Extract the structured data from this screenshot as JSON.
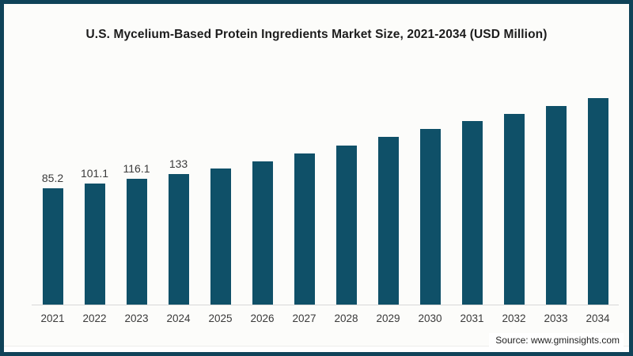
{
  "window": {
    "frame_color": "#0f4258",
    "background": "#fcfcfa"
  },
  "source": "Source: www.gminsights.com",
  "chart_data": {
    "type": "bar",
    "title": "U.S. Mycelium-Based Protein Ingredients Market Size, 2021-2034 (USD Million)",
    "xlabel": "",
    "ylabel": "USD Million",
    "categories": [
      "2021",
      "2022",
      "2023",
      "2024",
      "2025",
      "2026",
      "2027",
      "2028",
      "2029",
      "2030",
      "2031",
      "2032",
      "2033",
      "2034"
    ],
    "values": [
      85.2,
      101.1,
      116.1,
      133,
      151,
      174,
      200,
      226,
      252,
      280,
      304,
      329,
      355,
      381
    ],
    "data_labels": [
      "85.2",
      "101.1",
      "116.1",
      "133",
      "",
      "",
      "",
      "",
      "",
      "",
      "",
      "",
      "",
      ""
    ],
    "bar_color": "#0f5068",
    "axis_line_color": "#d8d8d8",
    "grid": false,
    "legend": false,
    "y_axis_shown": false,
    "baseline_note": "bars drawn on a non-zero-based scale; values for 2025-2034 estimated from bar heights"
  }
}
